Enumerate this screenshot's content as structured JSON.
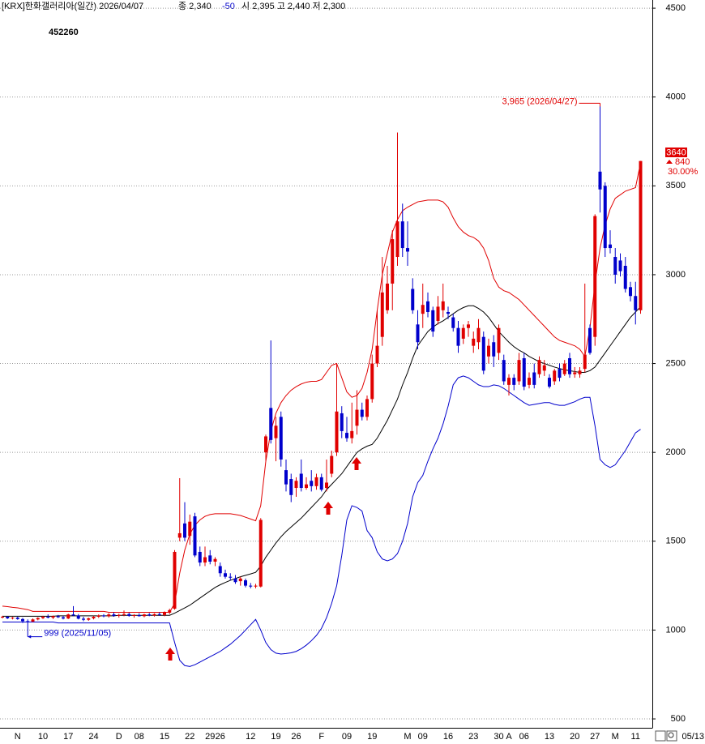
{
  "chart_data": {
    "type": "candlestick",
    "title": "[KRX]한화갤러리아(일간) 2026/04/07",
    "summary_close": "종 2,340",
    "summary_change": "-50",
    "summary_ohlc": "시 2,395 고 2,440 저 2,300",
    "code": "452260",
    "end_label": "05/13",
    "last_label": "3640",
    "change_label": "840",
    "change_pct_label": "30.00%",
    "annotations": [
      {
        "text": "3,965 (2026/04/27)",
        "color": "#e00000"
      },
      {
        "text": "999 (2025/11/05)",
        "color": "#0000cc"
      }
    ],
    "up_color": "#e00000",
    "down_color": "#0000cc",
    "ylim": [
      450,
      4546
    ],
    "yticks": [
      500,
      1000,
      1500,
      2000,
      2500,
      3000,
      3500,
      4000,
      4500
    ],
    "grid": true,
    "categories": [
      null,
      null,
      null,
      "N",
      null,
      null,
      null,
      null,
      "10",
      null,
      null,
      null,
      null,
      "17",
      null,
      null,
      null,
      null,
      "24",
      null,
      null,
      null,
      null,
      "D",
      null,
      null,
      null,
      "08",
      null,
      null,
      null,
      null,
      "15",
      null,
      null,
      null,
      null,
      "22",
      null,
      null,
      null,
      "29",
      null,
      "26",
      null,
      null,
      null,
      null,
      null,
      "12",
      null,
      null,
      null,
      null,
      "19",
      null,
      null,
      null,
      "26",
      null,
      null,
      null,
      null,
      "F",
      null,
      null,
      null,
      null,
      "09",
      null,
      null,
      null,
      null,
      "19",
      null,
      null,
      null,
      null,
      null,
      null,
      "M",
      null,
      null,
      "09",
      null,
      null,
      null,
      null,
      "16",
      null,
      null,
      null,
      null,
      "23",
      null,
      null,
      null,
      null,
      "30",
      null,
      "A",
      null,
      null,
      "06",
      null,
      null,
      null,
      null,
      "13",
      null,
      null,
      null,
      null,
      "20",
      null,
      null,
      null,
      "27",
      null,
      null,
      null,
      "M",
      null,
      null,
      null,
      "11",
      null
    ],
    "open": [
      1072,
      1075,
      1066,
      1070,
      1062,
      1050,
      1048,
      1060,
      1068,
      1075,
      1070,
      1078,
      1072,
      1065,
      1088,
      1082,
      1064,
      1058,
      1066,
      1075,
      1082,
      1078,
      1088,
      1080,
      1085,
      1090,
      1080,
      1084,
      1078,
      1088,
      1082,
      1090,
      1085,
      1098,
      1120,
      1520,
      1600,
      1530,
      1640,
      1440,
      1380,
      1420,
      1385,
      1360,
      1320,
      1300,
      1290,
      1275,
      1280,
      1250,
      1245,
      1245,
      2000,
      2250,
      2080,
      2200,
      1900,
      1850,
      1800,
      1880,
      1800,
      1840,
      1810,
      1860,
      1800,
      1880,
      2000,
      2220,
      2110,
      2080,
      2150,
      2240,
      2200,
      2300,
      2500,
      2650,
      2800,
      2950,
      3100,
      3300,
      3150,
      2920,
      2720,
      2780,
      2850,
      2800,
      2740,
      2800,
      2790,
      2760,
      2700,
      2640,
      2700,
      2600,
      2620,
      2650,
      2540,
      2620,
      2560,
      2520,
      2380,
      2420,
      2400,
      2530,
      2380,
      2450,
      2440,
      2460,
      2420,
      2400,
      2470,
      2440,
      2530,
      2440,
      2440,
      2470,
      2700,
      2650,
      3580,
      3500,
      3170,
      3100,
      3080,
      3050,
      2930,
      2880,
      2800
    ],
    "high": [
      1080,
      1078,
      1074,
      1075,
      1068,
      1060,
      1065,
      1072,
      1080,
      1088,
      1082,
      1085,
      1080,
      1092,
      1135,
      1090,
      1075,
      1070,
      1080,
      1088,
      1090,
      1095,
      1100,
      1092,
      1110,
      1098,
      1090,
      1095,
      1092,
      1096,
      1094,
      1100,
      1105,
      1120,
      1450,
      1855,
      1720,
      1650,
      1660,
      1470,
      1470,
      1450,
      1410,
      1380,
      1340,
      1320,
      1310,
      1300,
      1290,
      1265,
      1260,
      1630,
      2100,
      2630,
      2200,
      2230,
      1960,
      1880,
      1860,
      1960,
      1860,
      1900,
      1880,
      1880,
      1960,
      2010,
      2500,
      2260,
      2200,
      2280,
      2350,
      2280,
      2320,
      2550,
      2800,
      3100,
      3050,
      3250,
      3800,
      3400,
      3300,
      2980,
      2800,
      2950,
      2900,
      2820,
      2880,
      2950,
      2820,
      2780,
      2740,
      2720,
      2740,
      2680,
      2750,
      2680,
      2640,
      2660,
      2720,
      2550,
      2440,
      2440,
      2560,
      2560,
      2450,
      2500,
      2540,
      2520,
      2440,
      2470,
      2500,
      2520,
      2560,
      2480,
      2480,
      2950,
      2720,
      3340,
      3965,
      3520,
      3250,
      3150,
      3120,
      3100,
      2960,
      2960,
      3640
    ],
    "low": [
      1065,
      1062,
      1060,
      1058,
      1040,
      999,
      1045,
      1055,
      1062,
      1066,
      1062,
      1068,
      1060,
      1062,
      1078,
      1060,
      1050,
      1052,
      1060,
      1068,
      1072,
      1070,
      1075,
      1070,
      1078,
      1075,
      1070,
      1076,
      1072,
      1078,
      1076,
      1080,
      1078,
      1090,
      1115,
      1500,
      1500,
      1480,
      1410,
      1360,
      1360,
      1370,
      1360,
      1300,
      1290,
      1280,
      1260,
      1250,
      1240,
      1235,
      1235,
      1240,
      1950,
      2050,
      1950,
      1920,
      1780,
      1720,
      1750,
      1780,
      1790,
      1780,
      1790,
      1780,
      1780,
      1860,
      1980,
      2080,
      2060,
      2050,
      2100,
      2180,
      2180,
      2280,
      2480,
      2600,
      2780,
      2800,
      3050,
      3100,
      3050,
      2780,
      2580,
      2700,
      2760,
      2650,
      2720,
      2760,
      2750,
      2680,
      2560,
      2610,
      2650,
      2560,
      2580,
      2440,
      2500,
      2480,
      2520,
      2380,
      2320,
      2350,
      2380,
      2350,
      2360,
      2360,
      2420,
      2430,
      2360,
      2380,
      2400,
      2430,
      2420,
      2420,
      2420,
      2450,
      2550,
      2600,
      3350,
      3100,
      3120,
      2950,
      2990,
      2900,
      2850,
      2720,
      2780
    ],
    "close": [
      1075,
      1066,
      1070,
      1062,
      1050,
      1048,
      1060,
      1068,
      1075,
      1070,
      1078,
      1072,
      1065,
      1088,
      1082,
      1064,
      1058,
      1066,
      1075,
      1082,
      1078,
      1088,
      1080,
      1085,
      1090,
      1080,
      1084,
      1078,
      1088,
      1082,
      1090,
      1085,
      1098,
      1112,
      1440,
      1545,
      1520,
      1610,
      1420,
      1380,
      1410,
      1385,
      1400,
      1320,
      1300,
      1295,
      1270,
      1290,
      1250,
      1245,
      1250,
      1620,
      2090,
      2070,
      2150,
      1960,
      1820,
      1760,
      1840,
      1800,
      1820,
      1810,
      1860,
      1790,
      1830,
      1980,
      2230,
      2120,
      2080,
      2120,
      2240,
      2200,
      2300,
      2500,
      2600,
      2900,
      2950,
      3200,
      3300,
      3150,
      3130,
      2800,
      2620,
      2830,
      2790,
      2680,
      2820,
      2850,
      2780,
      2700,
      2600,
      2700,
      2720,
      2640,
      2700,
      2460,
      2600,
      2540,
      2700,
      2400,
      2420,
      2380,
      2520,
      2370,
      2420,
      2380,
      2520,
      2490,
      2370,
      2460,
      2420,
      2500,
      2440,
      2450,
      2460,
      2550,
      2560,
      3330,
      3480,
      3150,
      3150,
      3000,
      3020,
      2920,
      2880,
      2800,
      3640
    ],
    "overlays": [
      {
        "color": "#e00000",
        "values": [
          1135,
          1132,
          1128,
          1125,
          1120,
          1115,
          1105,
          1105,
          1105,
          1105,
          1105,
          1105,
          1105,
          1105,
          1105,
          1105,
          1105,
          1105,
          1105,
          1105,
          1105,
          1100,
          1100,
          1100,
          1100,
          1100,
          1100,
          1100,
          1100,
          1100,
          1100,
          1100,
          1100,
          1100,
          1150,
          1320,
          1450,
          1540,
          1590,
          1620,
          1640,
          1650,
          1655,
          1655,
          1655,
          1655,
          1650,
          1645,
          1635,
          1625,
          1615,
          1700,
          1950,
          2120,
          2220,
          2280,
          2320,
          2350,
          2370,
          2385,
          2395,
          2400,
          2400,
          2410,
          2450,
          2490,
          2500,
          2420,
          2340,
          2310,
          2320,
          2360,
          2450,
          2580,
          2800,
          3000,
          3120,
          3240,
          3310,
          3360,
          3380,
          3395,
          3410,
          3415,
          3420,
          3420,
          3420,
          3410,
          3380,
          3320,
          3270,
          3240,
          3220,
          3210,
          3190,
          3150,
          3080,
          2980,
          2930,
          2910,
          2900,
          2880,
          2860,
          2830,
          2800,
          2770,
          2740,
          2710,
          2680,
          2650,
          2630,
          2620,
          2610,
          2600,
          2580,
          2540,
          2700,
          2950,
          3150,
          3280,
          3370,
          3430,
          3450,
          3470,
          3480,
          3490,
          3630
        ]
      },
      {
        "color": "#000000",
        "values": [
          1078,
          1078,
          1078,
          1078,
          1078,
          1078,
          1078,
          1078,
          1078,
          1078,
          1078,
          1080,
          1080,
          1080,
          1080,
          1080,
          1080,
          1080,
          1080,
          1080,
          1080,
          1080,
          1080,
          1083,
          1083,
          1083,
          1083,
          1083,
          1083,
          1083,
          1083,
          1083,
          1083,
          1083,
          1095,
          1110,
          1125,
          1140,
          1160,
          1180,
          1200,
          1220,
          1240,
          1255,
          1268,
          1280,
          1290,
          1300,
          1308,
          1316,
          1325,
          1360,
          1410,
          1450,
          1490,
          1525,
          1555,
          1580,
          1605,
          1630,
          1660,
          1690,
          1720,
          1750,
          1790,
          1820,
          1850,
          1880,
          1920,
          1960,
          2000,
          2020,
          2035,
          2045,
          2080,
          2130,
          2180,
          2240,
          2300,
          2380,
          2450,
          2530,
          2600,
          2640,
          2680,
          2705,
          2725,
          2740,
          2760,
          2780,
          2800,
          2815,
          2825,
          2825,
          2810,
          2790,
          2760,
          2720,
          2680,
          2650,
          2620,
          2595,
          2575,
          2560,
          2540,
          2525,
          2510,
          2500,
          2490,
          2480,
          2472,
          2465,
          2460,
          2455,
          2450,
          2450,
          2460,
          2480,
          2520,
          2560,
          2600,
          2640,
          2680,
          2720,
          2760,
          2790,
          2820
        ]
      },
      {
        "color": "#0000cc",
        "values": [
          1045,
          1045,
          1045,
          1045,
          1045,
          1045,
          1045,
          1045,
          1045,
          1045,
          1045,
          1040,
          1040,
          1040,
          1040,
          1040,
          1040,
          1040,
          1040,
          1040,
          1040,
          1040,
          1040,
          1040,
          1040,
          1040,
          1040,
          1040,
          1040,
          1040,
          1040,
          1040,
          1040,
          1040,
          930,
          830,
          800,
          795,
          805,
          820,
          835,
          850,
          865,
          880,
          900,
          920,
          945,
          970,
          1000,
          1030,
          1060,
          1000,
          930,
          890,
          870,
          865,
          868,
          872,
          880,
          895,
          915,
          940,
          970,
          1010,
          1070,
          1150,
          1250,
          1420,
          1620,
          1700,
          1690,
          1670,
          1560,
          1520,
          1440,
          1400,
          1390,
          1400,
          1430,
          1500,
          1600,
          1750,
          1830,
          1870,
          1950,
          2020,
          2080,
          2160,
          2260,
          2380,
          2420,
          2430,
          2420,
          2400,
          2380,
          2370,
          2370,
          2380,
          2375,
          2360,
          2340,
          2320,
          2300,
          2280,
          2265,
          2270,
          2275,
          2280,
          2280,
          2270,
          2265,
          2265,
          2275,
          2285,
          2300,
          2310,
          2310,
          2150,
          1960,
          1930,
          1915,
          1930,
          1970,
          2010,
          2060,
          2110,
          2130
        ]
      }
    ]
  }
}
